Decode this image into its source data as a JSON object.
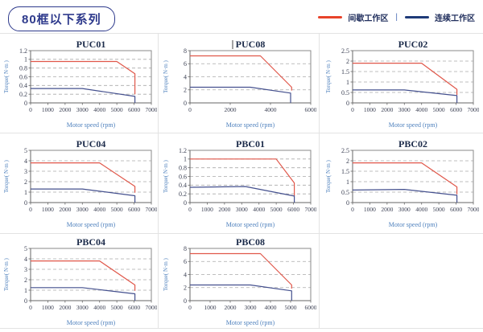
{
  "page": {
    "title": "80框以下系列"
  },
  "legend": {
    "items": [
      {
        "label": "间歇工作区",
        "color": "#e8432a"
      },
      {
        "label": "连续工作区",
        "color": "#1e3a78"
      }
    ],
    "separator": "|"
  },
  "style": {
    "grid_color": "#aaaaaa",
    "plot_border_color": "#8a8a8a",
    "axis_color": "#666666",
    "tick_label_color": "#3a3f52",
    "title_color": "#1c2b4a",
    "axis_label_color": "#4f81bd"
  },
  "chart_data": [
    {
      "type": "line",
      "title": "PUC01",
      "caret": false,
      "xlabel": "Motor speed (rpm)",
      "ylabel": "Torque( N·m )",
      "xlim": [
        0,
        7000
      ],
      "ylim": [
        0,
        1.2
      ],
      "xticks": [
        0,
        1000,
        2000,
        3000,
        4000,
        5000,
        6000,
        7000
      ],
      "yticks": [
        0,
        0.2,
        0.4,
        0.6,
        0.8,
        1,
        1.2
      ],
      "series": [
        {
          "name": "间歇工作区",
          "color": "#e0574a",
          "points": [
            [
              0,
              0.95
            ],
            [
              5000,
              0.95
            ],
            [
              6050,
              0.67
            ],
            [
              6050,
              0.2
            ]
          ]
        },
        {
          "name": "连续工作区",
          "color": "#44508e",
          "points": [
            [
              0,
              0.33
            ],
            [
              3000,
              0.33
            ],
            [
              6050,
              0.15
            ],
            [
              6050,
              0
            ]
          ]
        }
      ]
    },
    {
      "type": "line",
      "title": "PUC08",
      "caret": true,
      "xlabel": "Motor speed (rpm)",
      "ylabel": "Torque( N·m )",
      "xlim": [
        0,
        6000
      ],
      "ylim": [
        0,
        8
      ],
      "xticks": [
        0,
        2000,
        4000,
        6000
      ],
      "yticks": [
        0,
        2,
        4,
        6,
        8
      ],
      "series": [
        {
          "name": "间歇工作区",
          "color": "#e0574a",
          "points": [
            [
              0,
              7.2
            ],
            [
              3500,
              7.2
            ],
            [
              5050,
              2.4
            ],
            [
              5050,
              1.9
            ]
          ]
        },
        {
          "name": "连续工作区",
          "color": "#44508e",
          "points": [
            [
              0,
              2.4
            ],
            [
              3000,
              2.4
            ],
            [
              5000,
              1.5
            ],
            [
              5000,
              0
            ]
          ]
        }
      ]
    },
    {
      "type": "line",
      "title": "PUC02",
      "caret": false,
      "xlabel": "Motor speed (rpm)",
      "ylabel": "Torque( N·m )",
      "xlim": [
        0,
        7000
      ],
      "ylim": [
        0,
        2.5
      ],
      "xticks": [
        0,
        1000,
        2000,
        3000,
        4000,
        5000,
        6000,
        7000
      ],
      "yticks": [
        0,
        0.5,
        1,
        1.5,
        2,
        2.5
      ],
      "series": [
        {
          "name": "间歇工作区",
          "color": "#e0574a",
          "points": [
            [
              0,
              1.9
            ],
            [
              4000,
              1.9
            ],
            [
              6050,
              0.65
            ],
            [
              6050,
              0.38
            ]
          ]
        },
        {
          "name": "连续工作区",
          "color": "#44508e",
          "points": [
            [
              0,
              0.62
            ],
            [
              3000,
              0.62
            ],
            [
              6050,
              0.35
            ],
            [
              6050,
              0
            ]
          ]
        }
      ]
    },
    {
      "type": "line",
      "title": "PUC04",
      "caret": false,
      "xlabel": "Motor speed (rpm)",
      "ylabel": "Torque( N·m )",
      "xlim": [
        0,
        7000
      ],
      "ylim": [
        0,
        5
      ],
      "xticks": [
        0,
        1000,
        2000,
        3000,
        4000,
        5000,
        6000,
        7000
      ],
      "yticks": [
        0,
        1,
        2,
        3,
        4,
        5
      ],
      "series": [
        {
          "name": "间歇工作区",
          "color": "#e0574a",
          "points": [
            [
              0,
              3.8
            ],
            [
              4000,
              3.8
            ],
            [
              6050,
              1.55
            ],
            [
              6050,
              0.95
            ]
          ]
        },
        {
          "name": "连续工作区",
          "color": "#44508e",
          "points": [
            [
              0,
              1.3
            ],
            [
              3000,
              1.3
            ],
            [
              6050,
              0.65
            ],
            [
              6050,
              0
            ]
          ]
        }
      ]
    },
    {
      "type": "line",
      "title": "PBC01",
      "caret": false,
      "xlabel": "Motor speed (rpm)",
      "ylabel": "Torque( N·m )",
      "xlim": [
        0,
        7000
      ],
      "ylim": [
        0,
        1.2
      ],
      "xticks": [
        0,
        1000,
        2000,
        3000,
        4000,
        5000,
        6000,
        7000
      ],
      "yticks": [
        0,
        0.2,
        0.4,
        0.6,
        0.8,
        1,
        1.2
      ],
      "series": [
        {
          "name": "间歇工作区",
          "color": "#e0574a",
          "points": [
            [
              0,
              1
            ],
            [
              5000,
              1
            ],
            [
              6050,
              0.45
            ],
            [
              6050,
              0.15
            ]
          ]
        },
        {
          "name": "连续工作区",
          "color": "#44508e",
          "points": [
            [
              0,
              0.35
            ],
            [
              3200,
              0.37
            ],
            [
              6050,
              0.15
            ],
            [
              6050,
              0
            ]
          ]
        }
      ]
    },
    {
      "type": "line",
      "title": "PBC02",
      "caret": false,
      "xlabel": "Motor speed (rpm)",
      "ylabel": "Torque( N·m )",
      "xlim": [
        0,
        7000
      ],
      "ylim": [
        0,
        2.5
      ],
      "xticks": [
        0,
        1000,
        2000,
        3000,
        4000,
        5000,
        6000,
        7000
      ],
      "yticks": [
        0,
        0.5,
        1,
        1.5,
        2,
        2.5
      ],
      "series": [
        {
          "name": "间歇工作区",
          "color": "#e0574a",
          "points": [
            [
              0,
              1.9
            ],
            [
              4000,
              1.9
            ],
            [
              6050,
              0.75
            ],
            [
              6050,
              0.4
            ]
          ]
        },
        {
          "name": "连续工作区",
          "color": "#44508e",
          "points": [
            [
              0,
              0.6
            ],
            [
              3000,
              0.63
            ],
            [
              6050,
              0.35
            ],
            [
              6050,
              0
            ]
          ]
        }
      ]
    },
    {
      "type": "line",
      "title": "PBC04",
      "caret": false,
      "xlabel": "Motor speed (rpm)",
      "ylabel": "Torque( N·m )",
      "xlim": [
        0,
        7000
      ],
      "ylim": [
        0,
        5
      ],
      "xticks": [
        0,
        1000,
        2000,
        3000,
        4000,
        5000,
        6000,
        7000
      ],
      "yticks": [
        0,
        1,
        2,
        3,
        4,
        5
      ],
      "series": [
        {
          "name": "间歇工作区",
          "color": "#e0574a",
          "points": [
            [
              0,
              3.8
            ],
            [
              4000,
              3.8
            ],
            [
              6050,
              1.5
            ],
            [
              6050,
              0.95
            ]
          ]
        },
        {
          "name": "连续工作区",
          "color": "#44508e",
          "points": [
            [
              0,
              1.25
            ],
            [
              3000,
              1.25
            ],
            [
              6050,
              0.65
            ],
            [
              6050,
              0
            ]
          ]
        }
      ]
    },
    {
      "type": "line",
      "title": "PBC08",
      "caret": false,
      "xlabel": "Motor speed (rpm)",
      "ylabel": "Torque( N·m )",
      "xlim": [
        0,
        6000
      ],
      "ylim": [
        0,
        8
      ],
      "xticks": [
        0,
        1000,
        2000,
        3000,
        4000,
        5000,
        6000
      ],
      "yticks": [
        0,
        2,
        4,
        6,
        8
      ],
      "series": [
        {
          "name": "间歇工作区",
          "color": "#e0574a",
          "points": [
            [
              0,
              7.2
            ],
            [
              3500,
              7.2
            ],
            [
              5050,
              2.4
            ],
            [
              5050,
              1.85
            ]
          ]
        },
        {
          "name": "连续工作区",
          "color": "#44508e",
          "points": [
            [
              0,
              2.4
            ],
            [
              3000,
              2.4
            ],
            [
              5050,
              1.5
            ],
            [
              5050,
              0
            ]
          ]
        }
      ]
    }
  ]
}
